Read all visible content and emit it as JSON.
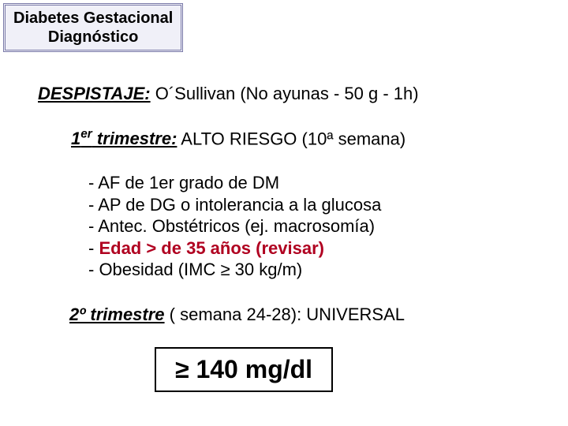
{
  "header": {
    "line1": "Diabetes Gestacional",
    "line2": "Diagnóstico"
  },
  "despistaje": {
    "label": "DESPISTAJE:",
    "text": " O´Sullivan (No ayunas - 50 g - 1h)"
  },
  "first_trimester": {
    "label_prefix": "1",
    "label_sup": "er",
    "label_suffix": " trimestre:",
    "text": "  ALTO RIESGO (10ª semana)"
  },
  "bullets": {
    "b1": "- AF de 1er grado de DM",
    "b2": "- AP de DG o intolerancia a la glucosa",
    "b3": "- Antec. Obstétricos (ej. macrosomía)",
    "b4_dash": "- ",
    "b4_text": "Edad > de 35 años (revisar)",
    "b5": "- Obesidad (IMC ≥ 30 kg/m)"
  },
  "second_trimester": {
    "label": "2º trimestre",
    "text": " ( semana 24-28): UNIVERSAL"
  },
  "threshold": {
    "value": "≥ 140 mg/dl"
  },
  "colors": {
    "header_border": "#7a7aa8",
    "header_bg": "#f0f0f8",
    "highlight": "#b00020",
    "text": "#000000",
    "page_bg": "#ffffff"
  },
  "fonts": {
    "header_size_pt": 15,
    "body_size_pt": 16,
    "threshold_size_pt": 24
  }
}
